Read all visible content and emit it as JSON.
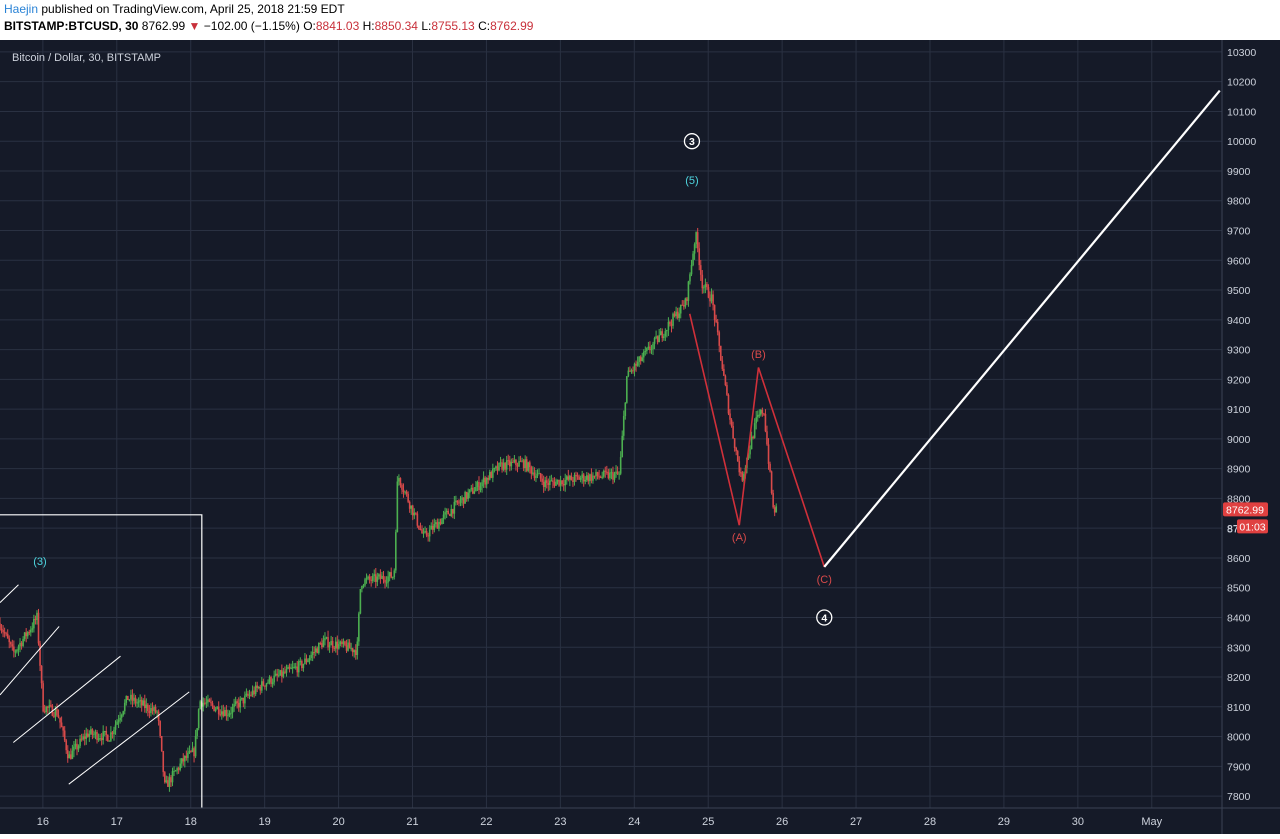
{
  "header": {
    "author": "Haejin",
    "published": "published on TradingView.com, April 25, 2018 21:59 EDT",
    "symbol": "BITSTAMP:BTCUSD, 30",
    "last": "8762.99",
    "arrow": "▼",
    "change": "−102.00 (−1.15%)",
    "o_label": "O:",
    "o_value": "8841.03",
    "h_label": "H:",
    "h_value": "8850.34",
    "l_label": "L:",
    "l_value": "8755.13",
    "c_label": "C:",
    "c_value": "8762.99"
  },
  "chart_data": {
    "type": "candlestick",
    "title": "Bitcoin / Dollar, 30, BITSTAMP",
    "ylim": [
      7760,
      10340
    ],
    "y_ticks": [
      7800,
      7900,
      8000,
      8100,
      8200,
      8300,
      8400,
      8500,
      8600,
      8700,
      8800,
      8900,
      9000,
      9100,
      9200,
      9300,
      9400,
      9500,
      9600,
      9700,
      9800,
      9900,
      10000,
      10100,
      10200,
      10300
    ],
    "x_ticks": [
      "16",
      "17",
      "18",
      "19",
      "20",
      "21",
      "22",
      "23",
      "24",
      "25",
      "26",
      "27",
      "28",
      "29",
      "30",
      "May"
    ],
    "x_tick_pos": [
      16,
      17,
      18,
      19,
      20,
      21,
      22,
      23,
      24,
      25,
      26,
      27,
      28,
      29,
      30,
      31
    ],
    "xlim": [
      15.42,
      31.95
    ],
    "price_path": [
      [
        15.42,
        8380
      ],
      [
        15.6,
        8280
      ],
      [
        15.85,
        8370
      ],
      [
        15.92,
        8400
      ],
      [
        16.0,
        8100
      ],
      [
        16.2,
        8080
      ],
      [
        16.35,
        7930
      ],
      [
        16.6,
        8010
      ],
      [
        16.9,
        8000
      ],
      [
        17.15,
        8130
      ],
      [
        17.55,
        8080
      ],
      [
        17.65,
        7830
      ],
      [
        17.9,
        7920
      ],
      [
        18.05,
        7950
      ],
      [
        18.12,
        8120
      ],
      [
        18.5,
        8080
      ],
      [
        19.0,
        8180
      ],
      [
        19.5,
        8240
      ],
      [
        19.8,
        8320
      ],
      [
        20.25,
        8290
      ],
      [
        20.3,
        8520
      ],
      [
        20.75,
        8540
      ],
      [
        20.8,
        8880
      ],
      [
        21.15,
        8670
      ],
      [
        21.6,
        8780
      ],
      [
        22.2,
        8910
      ],
      [
        22.5,
        8920
      ],
      [
        22.8,
        8850
      ],
      [
        23.3,
        8870
      ],
      [
        23.8,
        8880
      ],
      [
        23.9,
        9210
      ],
      [
        24.3,
        9330
      ],
      [
        24.7,
        9460
      ],
      [
        24.83,
        9690
      ],
      [
        24.92,
        9520
      ],
      [
        25.05,
        9470
      ],
      [
        25.3,
        9060
      ],
      [
        25.45,
        8860
      ],
      [
        25.65,
        9060
      ],
      [
        25.75,
        9100
      ],
      [
        25.88,
        8760
      ],
      [
        25.93,
        8763
      ]
    ],
    "wave_labels": [
      {
        "text": "3",
        "circled": true,
        "x": 24.78,
        "y": 10000,
        "color": "#ffffff"
      },
      {
        "text": "(5)",
        "circled": false,
        "x": 24.78,
        "y": 9870,
        "color": "#4fd6e0"
      },
      {
        "text": "(3)",
        "circled": false,
        "x": 15.96,
        "y": 8590,
        "color": "#4fd6e0"
      },
      {
        "text": "(A)",
        "circled": false,
        "x": 25.42,
        "y": 8670,
        "color": "#d84a4a"
      },
      {
        "text": "(B)",
        "circled": false,
        "x": 25.68,
        "y": 9285,
        "color": "#d84a4a"
      },
      {
        "text": "(C)",
        "circled": false,
        "x": 26.57,
        "y": 8530,
        "color": "#d84a4a"
      },
      {
        "text": "4",
        "circled": true,
        "x": 26.57,
        "y": 8400,
        "color": "#ffffff"
      }
    ],
    "red_path": [
      [
        24.75,
        9420
      ],
      [
        25.42,
        8710
      ],
      [
        25.68,
        9240
      ],
      [
        26.57,
        8570
      ]
    ],
    "projection": [
      [
        26.57,
        8570
      ],
      [
        31.92,
        10170
      ]
    ],
    "channel_lines": [
      [
        [
          15.42,
          8450
        ],
        [
          15.67,
          8510
        ]
      ],
      [
        [
          15.42,
          8140
        ],
        [
          16.22,
          8370
        ]
      ],
      [
        [
          15.6,
          7980
        ],
        [
          17.05,
          8270
        ]
      ],
      [
        [
          16.35,
          7840
        ],
        [
          17.98,
          8150
        ]
      ]
    ],
    "box": {
      "x0": 15.42,
      "x1": 18.15,
      "y_top": 8745
    },
    "last_price_label": "8762.99",
    "countdown_label": "01:03",
    "partial_tick_label": "87"
  },
  "colors": {
    "background": "#151a28",
    "grid": "#2a3142",
    "up": "#4caf50",
    "down": "#d84a4a",
    "axis_text": "#cdd2dc",
    "price_tag": "#e04040"
  }
}
